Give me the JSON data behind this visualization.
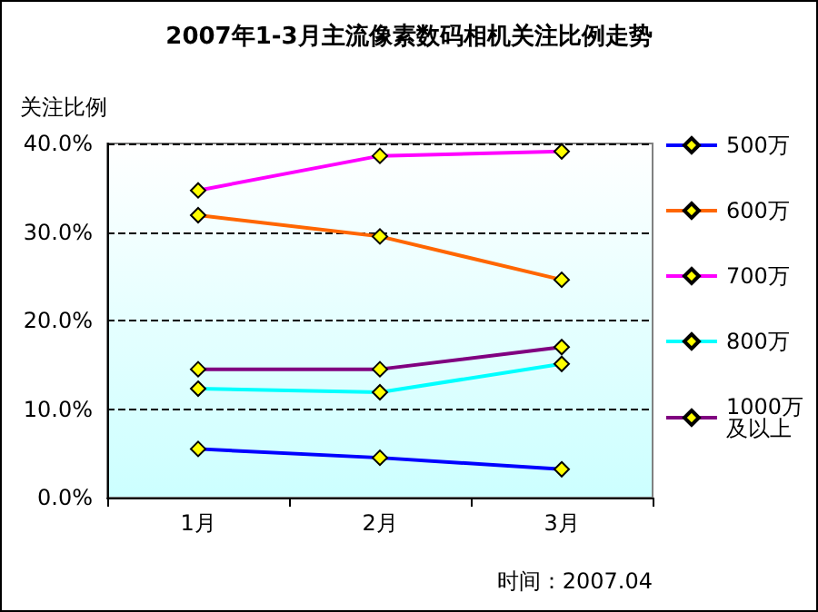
{
  "chart_data": {
    "type": "line",
    "title": "2007年1-3月主流像素数码相机关注比例走势",
    "ylabel": "关注比例",
    "categories": [
      "1月",
      "2月",
      "3月"
    ],
    "series": [
      {
        "name": "500万",
        "color": "#0000ff",
        "values": [
          5.5,
          4.5,
          3.2
        ]
      },
      {
        "name": "600万",
        "color": "#ff6600",
        "values": [
          31.9,
          29.5,
          24.6
        ]
      },
      {
        "name": "700万",
        "color": "#ff00ff",
        "values": [
          34.7,
          38.6,
          39.1
        ]
      },
      {
        "name": "800万",
        "color": "#00ffff",
        "values": [
          12.3,
          11.9,
          15.1
        ]
      },
      {
        "name": "1000万及以上",
        "color": "#800080",
        "values": [
          14.5,
          14.5,
          17.0
        ]
      }
    ],
    "ylim": [
      0,
      40
    ],
    "yticks": [
      {
        "value": 0,
        "label": "0.0%"
      },
      {
        "value": 10,
        "label": "10.0%"
      },
      {
        "value": 20,
        "label": "20.0%"
      },
      {
        "value": 30,
        "label": "30.0%"
      },
      {
        "value": 40,
        "label": "40.0%"
      }
    ],
    "grid": "y",
    "legend": "right",
    "marker": "diamond",
    "line_style": "solid",
    "annotations": [
      "时间：2007.04"
    ]
  }
}
